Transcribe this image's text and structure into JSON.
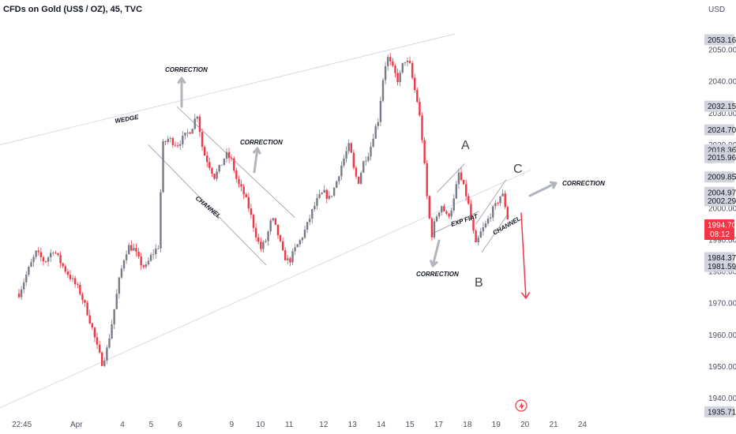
{
  "header": {
    "title": "CFDs on Gold (US$ / OZ), 45, TVC"
  },
  "chart_data": {
    "type": "candlestick",
    "instrument": "CFDs on Gold (US$ / OZ)",
    "timeframe": "45",
    "source": "TVC",
    "y_unit": "USD",
    "ylim": [
      1935,
      2060
    ],
    "y_ticks": [
      1940,
      1950,
      1960,
      1970,
      1980,
      1990,
      2000,
      2010,
      2020,
      2030,
      2040,
      2050
    ],
    "y_tick_labels": [
      "1940.00",
      "1950.00",
      "1960.00",
      "1970.00",
      "1980.00",
      "1990.00",
      "2000.00",
      "2010.00",
      "2020.00",
      "2030.00",
      "2040.00",
      "2050.00"
    ],
    "x_ticks": [
      "22:45",
      "Apr",
      "4",
      "5",
      "6",
      "9",
      "10",
      "11",
      "12",
      "13",
      "14",
      "15",
      "17",
      "18",
      "19",
      "20",
      "21",
      "24"
    ],
    "x_tick_positions": [
      0.1,
      2.0,
      3.6,
      4.6,
      5.6,
      7.4,
      8.4,
      9.4,
      10.6,
      11.6,
      12.6,
      13.6,
      14.6,
      15.6,
      16.6,
      17.6,
      18.6,
      19.6
    ],
    "price_labels": [
      {
        "text": "2053.16",
        "value": 2053.16,
        "style": "gray"
      },
      {
        "text": "2032.15",
        "value": 2032.15,
        "style": "gray"
      },
      {
        "text": "2024.70",
        "value": 2024.7,
        "style": "gray"
      },
      {
        "text": "2018.36",
        "value": 2018.36,
        "style": "gray"
      },
      {
        "text": "2015.96",
        "value": 2015.96,
        "style": "gray"
      },
      {
        "text": "2009.85",
        "value": 2009.85,
        "style": "gray"
      },
      {
        "text": "2004.97",
        "value": 2004.97,
        "style": "gray"
      },
      {
        "text": "2002.29",
        "value": 2002.29,
        "style": "gray"
      },
      {
        "text": "1984.37",
        "value": 1984.37,
        "style": "gray"
      },
      {
        "text": "1981.59",
        "value": 1981.59,
        "style": "gray"
      },
      {
        "text": "1935.71",
        "value": 1935.71,
        "style": "gray"
      }
    ],
    "current_price": {
      "text": "1994.70",
      "countdown": "08:12",
      "value": 1994.7
    },
    "colors": {
      "up": "#787b86",
      "down": "#f23645",
      "wedge": "#d1d4dc",
      "channel": "#9598a1",
      "arrow": "#b2b5be",
      "red": "#f23645"
    },
    "series": [
      {
        "x": 0.0,
        "p": 1973
      },
      {
        "x": 0.3,
        "p": 1980
      },
      {
        "x": 0.6,
        "p": 1986
      },
      {
        "x": 0.9,
        "p": 1983
      },
      {
        "x": 1.2,
        "p": 1987
      },
      {
        "x": 1.5,
        "p": 1982
      },
      {
        "x": 1.8,
        "p": 1978
      },
      {
        "x": 2.1,
        "p": 1974
      },
      {
        "x": 2.35,
        "p": 1968
      },
      {
        "x": 2.55,
        "p": 1962
      },
      {
        "x": 2.75,
        "p": 1955
      },
      {
        "x": 2.9,
        "p": 1951
      },
      {
        "x": 3.05,
        "p": 1955
      },
      {
        "x": 3.2,
        "p": 1962
      },
      {
        "x": 3.35,
        "p": 1970
      },
      {
        "x": 3.5,
        "p": 1978
      },
      {
        "x": 3.65,
        "p": 1984
      },
      {
        "x": 3.8,
        "p": 1988
      },
      {
        "x": 4.0,
        "p": 1987
      },
      {
        "x": 4.2,
        "p": 1983
      },
      {
        "x": 4.4,
        "p": 1981
      },
      {
        "x": 4.6,
        "p": 1985
      },
      {
        "x": 4.85,
        "p": 1988
      },
      {
        "x": 5.0,
        "p": 2020
      },
      {
        "x": 5.2,
        "p": 2022
      },
      {
        "x": 5.5,
        "p": 2020
      },
      {
        "x": 5.8,
        "p": 2023
      },
      {
        "x": 6.0,
        "p": 2025
      },
      {
        "x": 6.2,
        "p": 2030
      },
      {
        "x": 6.4,
        "p": 2018
      },
      {
        "x": 6.6,
        "p": 2014
      },
      {
        "x": 6.8,
        "p": 2010
      },
      {
        "x": 7.0,
        "p": 2013
      },
      {
        "x": 7.2,
        "p": 2017
      },
      {
        "x": 7.4,
        "p": 2015
      },
      {
        "x": 7.6,
        "p": 2008
      },
      {
        "x": 7.8,
        "p": 2005
      },
      {
        "x": 8.0,
        "p": 2000
      },
      {
        "x": 8.2,
        "p": 1993
      },
      {
        "x": 8.4,
        "p": 1987
      },
      {
        "x": 8.6,
        "p": 1990
      },
      {
        "x": 8.8,
        "p": 1997
      },
      {
        "x": 9.0,
        "p": 1992
      },
      {
        "x": 9.2,
        "p": 1985
      },
      {
        "x": 9.4,
        "p": 1983
      },
      {
        "x": 9.6,
        "p": 1987
      },
      {
        "x": 9.8,
        "p": 1990
      },
      {
        "x": 10.0,
        "p": 1994
      },
      {
        "x": 10.2,
        "p": 1999
      },
      {
        "x": 10.4,
        "p": 2003
      },
      {
        "x": 10.6,
        "p": 2005
      },
      {
        "x": 10.8,
        "p": 2003
      },
      {
        "x": 11.0,
        "p": 2007
      },
      {
        "x": 11.2,
        "p": 2013
      },
      {
        "x": 11.4,
        "p": 2018
      },
      {
        "x": 11.5,
        "p": 2020
      },
      {
        "x": 11.65,
        "p": 2012
      },
      {
        "x": 11.8,
        "p": 2008
      },
      {
        "x": 12.0,
        "p": 2015
      },
      {
        "x": 12.2,
        "p": 2018
      },
      {
        "x": 12.35,
        "p": 2024
      },
      {
        "x": 12.5,
        "p": 2028
      },
      {
        "x": 12.65,
        "p": 2040
      },
      {
        "x": 12.8,
        "p": 2048
      },
      {
        "x": 13.0,
        "p": 2044
      },
      {
        "x": 13.2,
        "p": 2040
      },
      {
        "x": 13.4,
        "p": 2047
      },
      {
        "x": 13.6,
        "p": 2045
      },
      {
        "x": 13.75,
        "p": 2038
      },
      {
        "x": 13.9,
        "p": 2032
      },
      {
        "x": 14.05,
        "p": 2020
      },
      {
        "x": 14.2,
        "p": 2003
      },
      {
        "x": 14.35,
        "p": 1991
      },
      {
        "x": 14.5,
        "p": 1997
      },
      {
        "x": 14.7,
        "p": 2001
      },
      {
        "x": 14.9,
        "p": 1997
      },
      {
        "x": 15.1,
        "p": 2001
      },
      {
        "x": 15.3,
        "p": 2011
      },
      {
        "x": 15.45,
        "p": 2007
      },
      {
        "x": 15.6,
        "p": 2003
      },
      {
        "x": 15.75,
        "p": 1995
      },
      {
        "x": 15.9,
        "p": 1988
      },
      {
        "x": 16.05,
        "p": 1992
      },
      {
        "x": 16.25,
        "p": 1995
      },
      {
        "x": 16.45,
        "p": 1999
      },
      {
        "x": 16.6,
        "p": 2001
      },
      {
        "x": 16.75,
        "p": 2004
      },
      {
        "x": 16.85,
        "p": 2004
      },
      {
        "x": 16.95,
        "p": 1999
      },
      {
        "x": 17.05,
        "p": 1994.7
      }
    ],
    "annotations": {
      "wedge": "WEDGE",
      "correction_1": "CORRECTION",
      "correction_2": "CORRECTION",
      "correction_3": "CORRECTION",
      "correction_4": "CORRECTION",
      "channel_1": "CHANNEL",
      "channel_2": "CHANNEL",
      "exp_flat": "EXP FIAT",
      "wave_a": "A",
      "wave_b": "B",
      "wave_c": "C"
    }
  }
}
